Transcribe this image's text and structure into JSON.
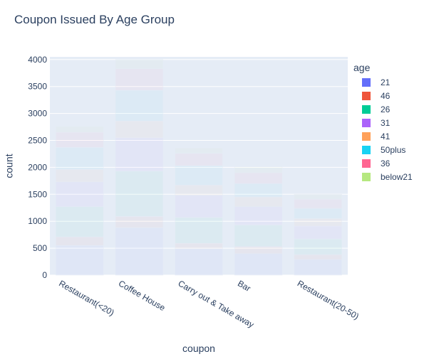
{
  "chart_data": {
    "type": "bar",
    "barmode": "stack",
    "title": "Coupon Issued By Age Group",
    "xlabel": "coupon",
    "ylabel": "count",
    "ylim": [
      0,
      4050
    ],
    "yticks": [
      0,
      500,
      1000,
      1500,
      2000,
      2500,
      3000,
      3500,
      4000
    ],
    "grid": true,
    "categories": [
      "Restaurant(<20)",
      "Coffee House",
      "Carry out & Take away",
      "Bar",
      "Restaurant(20-50)"
    ],
    "legend_title": "age",
    "legend_position": "right",
    "series": [
      {
        "name": "21",
        "color": "#636efa",
        "values": [
          550,
          880,
          490,
          400,
          290
        ]
      },
      {
        "name": "46",
        "color": "#EF553B",
        "values": [
          160,
          210,
          100,
          130,
          90
        ]
      },
      {
        "name": "26",
        "color": "#00cc96",
        "values": [
          560,
          840,
          480,
          400,
          290
        ]
      },
      {
        "name": "31",
        "color": "#ab63fa",
        "values": [
          460,
          620,
          410,
          340,
          240
        ]
      },
      {
        "name": "41",
        "color": "#FFA15A",
        "values": [
          230,
          310,
          190,
          180,
          140
        ]
      },
      {
        "name": "50plus",
        "color": "#19d3f3",
        "values": [
          410,
          570,
          360,
          250,
          190
        ]
      },
      {
        "name": "36",
        "color": "#FF6692",
        "values": [
          280,
          400,
          230,
          200,
          170
        ]
      },
      {
        "name": "below21",
        "color": "#B6E880",
        "values": [
          110,
          170,
          100,
          110,
          90
        ]
      }
    ]
  }
}
